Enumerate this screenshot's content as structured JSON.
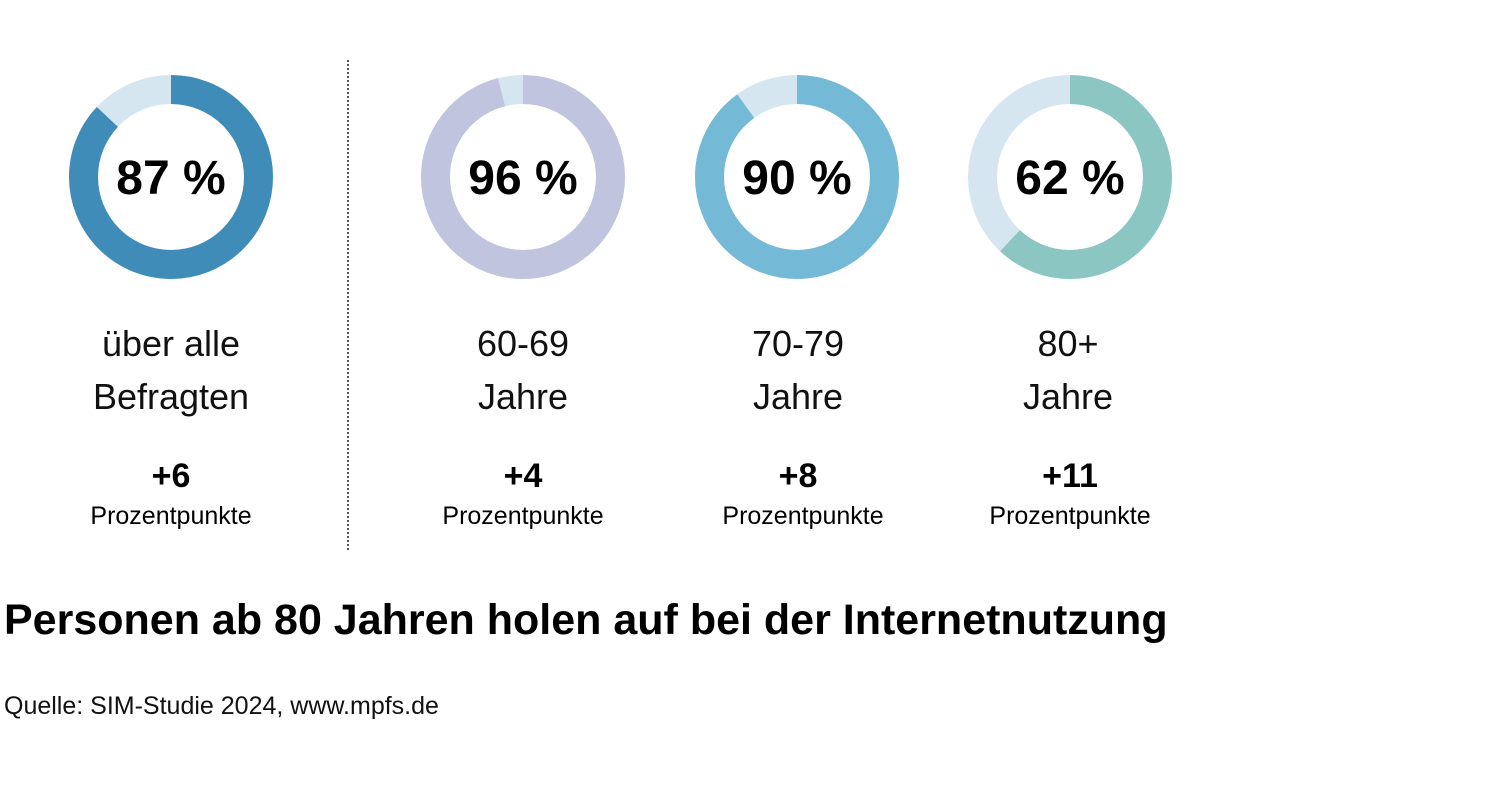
{
  "chart_data": {
    "type": "donut",
    "title": "Personen ab 80 Jahren holen auf bei der Internetnutzung",
    "source": "Quelle: SIM-Studie 2024, www.mpfs.de",
    "track_color": "#d6e6f0",
    "groups": [
      {
        "value": 87,
        "value_label": "87 %",
        "label_line1": "über alle",
        "label_line2": "Befragten",
        "change": "+6",
        "change_unit": "Prozentpunkte",
        "color": "#3f8cb8"
      },
      {
        "value": 96,
        "value_label": "96 %",
        "label_line1": "60-69",
        "label_line2": "Jahre",
        "change": "+4",
        "change_unit": "Prozentpunkte",
        "color": "#c0c4de"
      },
      {
        "value": 90,
        "value_label": "90 %",
        "label_line1": "70-79",
        "label_line2": "Jahre",
        "change": "+8",
        "change_unit": "Prozentpunkte",
        "color": "#74b9d6"
      },
      {
        "value": 62,
        "value_label": "62 %",
        "label_line1": "80+",
        "label_line2": "Jahre",
        "change": "+11",
        "change_unit": "Prozentpunkte",
        "color": "#8cc6c2"
      }
    ]
  }
}
